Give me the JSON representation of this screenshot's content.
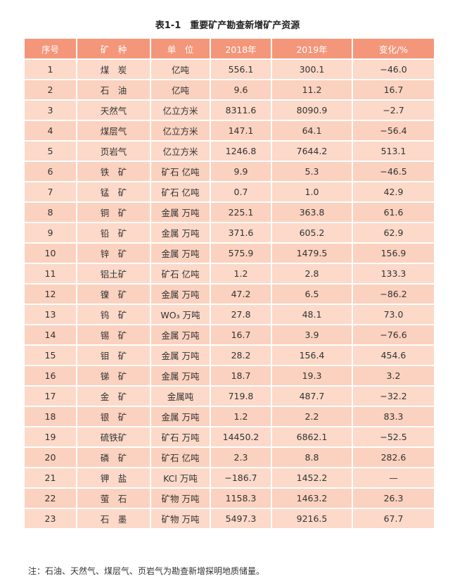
{
  "title": "表1-1　重要矿产勘查新增矿产资源",
  "colors": {
    "header": "#f4967a",
    "row": "#fcd9c9",
    "row_alt": "#fbd1bf"
  },
  "headers": [
    "序号",
    "矿　种",
    "单　位",
    "2018年",
    "2019年",
    "变化/%"
  ],
  "rows": [
    [
      "1",
      "煤　炭",
      "亿吨",
      "556.1",
      "300.1",
      "−46.0"
    ],
    [
      "2",
      "石　油",
      "亿吨",
      "9.6",
      "11.2",
      "16.7"
    ],
    [
      "3",
      "天然气",
      "亿立方米",
      "8311.6",
      "8090.9",
      "−2.7"
    ],
    [
      "4",
      "煤层气",
      "亿立方米",
      "147.1",
      "64.1",
      "−56.4"
    ],
    [
      "5",
      "页岩气",
      "亿立方米",
      "1246.8",
      "7644.2",
      "513.1"
    ],
    [
      "6",
      "铁　矿",
      "矿石 亿吨",
      "9.9",
      "5.3",
      "−46.5"
    ],
    [
      "7",
      "锰　矿",
      "矿石 亿吨",
      "0.7",
      "1.0",
      "42.9"
    ],
    [
      "8",
      "铜　矿",
      "金属 万吨",
      "225.1",
      "363.8",
      "61.6"
    ],
    [
      "9",
      "铅　矿",
      "金属 万吨",
      "371.6",
      "605.2",
      "62.9"
    ],
    [
      "10",
      "锌　矿",
      "金属 万吨",
      "575.9",
      "1479.5",
      "156.9"
    ],
    [
      "11",
      "铝土矿",
      "矿石 亿吨",
      "1.2",
      "2.8",
      "133.3"
    ],
    [
      "12",
      "镍　矿",
      "金属 万吨",
      "47.2",
      "6.5",
      "−86.2"
    ],
    [
      "13",
      "钨　矿",
      "WO₃ 万吨",
      "27.8",
      "48.1",
      "73.0"
    ],
    [
      "14",
      "锡　矿",
      "金属 万吨",
      "16.7",
      "3.9",
      "−76.6"
    ],
    [
      "15",
      "钼　矿",
      "金属 万吨",
      "28.2",
      "156.4",
      "454.6"
    ],
    [
      "16",
      "锑　矿",
      "金属 万吨",
      "18.7",
      "19.3",
      "3.2"
    ],
    [
      "17",
      "金　矿",
      "金属吨",
      "719.8",
      "487.7",
      "−32.2"
    ],
    [
      "18",
      "银　矿",
      "金属 万吨",
      "1.2",
      "2.2",
      "83.3"
    ],
    [
      "19",
      "硫铁矿",
      "矿石 万吨",
      "14450.2",
      "6862.1",
      "−52.5"
    ],
    [
      "20",
      "磷　矿",
      "矿石 亿吨",
      "2.3",
      "8.8",
      "282.6"
    ],
    [
      "21",
      "钾　盐",
      "KCl 万吨",
      "−186.7",
      "1452.2",
      "—"
    ],
    [
      "22",
      "萤　石",
      "矿物 万吨",
      "1158.3",
      "1463.2",
      "26.3"
    ],
    [
      "23",
      "石　墨",
      "矿物 万吨",
      "5497.3",
      "9216.5",
      "67.7"
    ]
  ],
  "footnote": "注：石油、天然气、煤层气、页岩气为勘查新增探明地质储量。"
}
